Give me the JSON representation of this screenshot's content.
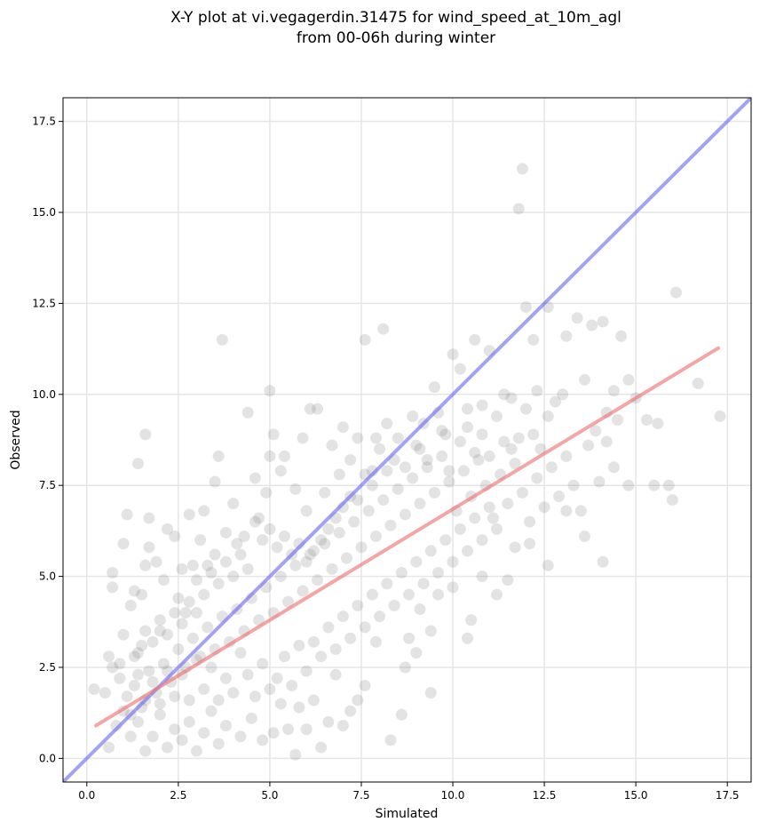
{
  "chart_data": {
    "type": "scatter",
    "title": "X-Y plot at vi.vegagerdin.31475 for wind_speed_at_10m_agl",
    "subtitle": "from 00-06h during winter",
    "xlabel": "Simulated",
    "ylabel": "Observed",
    "xlim": [
      -0.65,
      18.15
    ],
    "ylim": [
      -0.65,
      18.15
    ],
    "xticks": [
      0.0,
      2.5,
      5.0,
      7.5,
      10.0,
      12.5,
      15.0,
      17.5
    ],
    "yticks": [
      0.0,
      2.5,
      5.0,
      7.5,
      10.0,
      12.5,
      15.0,
      17.5
    ],
    "xtick_labels": [
      "0.0",
      "2.5",
      "5.0",
      "7.5",
      "10.0",
      "12.5",
      "15.0",
      "17.5"
    ],
    "ytick_labels": [
      "0.0",
      "2.5",
      "5.0",
      "7.5",
      "10.0",
      "12.5",
      "15.0",
      "17.5"
    ],
    "grid": true,
    "point_color": "#808080",
    "identity_line": {
      "x": [
        -0.65,
        18.15
      ],
      "y": [
        -0.65,
        18.15
      ],
      "color": "#6666ee"
    },
    "regression_line": {
      "x": [
        0.25,
        17.25
      ],
      "y": [
        0.9,
        11.27
      ],
      "color": "#ee7777"
    },
    "points": [
      [
        0.2,
        1.9
      ],
      [
        0.5,
        1.8
      ],
      [
        0.6,
        2.8
      ],
      [
        0.7,
        5.1
      ],
      [
        0.7,
        4.7
      ],
      [
        0.7,
        2.5
      ],
      [
        0.9,
        2.6
      ],
      [
        1.0,
        3.4
      ],
      [
        1.1,
        6.7
      ],
      [
        1.0,
        5.9
      ],
      [
        1.2,
        4.2
      ],
      [
        1.3,
        4.6
      ],
      [
        1.4,
        8.1
      ],
      [
        1.5,
        4.5
      ],
      [
        1.6,
        5.3
      ],
      [
        1.6,
        8.9
      ],
      [
        1.7,
        6.6
      ],
      [
        1.7,
        5.8
      ],
      [
        1.9,
        5.4
      ],
      [
        2.0,
        3.5
      ],
      [
        1.3,
        2.8
      ],
      [
        1.5,
        3.1
      ],
      [
        2.1,
        4.9
      ],
      [
        2.2,
        6.3
      ],
      [
        2.4,
        6.1
      ],
      [
        2.5,
        4.4
      ],
      [
        2.6,
        5.2
      ],
      [
        2.7,
        4.0
      ],
      [
        2.8,
        6.7
      ],
      [
        2.9,
        5.3
      ],
      [
        3.0,
        4.9
      ],
      [
        3.1,
        6.0
      ],
      [
        3.2,
        6.8
      ],
      [
        3.3,
        5.3
      ],
      [
        3.5,
        5.6
      ],
      [
        3.6,
        8.3
      ],
      [
        3.5,
        7.6
      ],
      [
        3.7,
        11.5
      ],
      [
        3.8,
        6.2
      ],
      [
        4.0,
        7.0
      ],
      [
        4.1,
        5.9
      ],
      [
        4.3,
        6.1
      ],
      [
        4.4,
        9.5
      ],
      [
        4.6,
        7.7
      ],
      [
        4.7,
        6.6
      ],
      [
        4.9,
        7.3
      ],
      [
        5.0,
        8.3
      ],
      [
        5.0,
        10.1
      ],
      [
        5.1,
        8.9
      ],
      [
        5.3,
        7.9
      ],
      [
        5.4,
        8.3
      ],
      [
        5.7,
        7.4
      ],
      [
        5.9,
        8.8
      ],
      [
        6.0,
        6.8
      ],
      [
        6.1,
        9.6
      ],
      [
        6.3,
        9.6
      ],
      [
        6.5,
        7.3
      ],
      [
        6.7,
        8.6
      ],
      [
        6.9,
        7.8
      ],
      [
        7.0,
        9.1
      ],
      [
        7.2,
        8.2
      ],
      [
        7.4,
        8.8
      ],
      [
        7.6,
        11.5
      ],
      [
        7.8,
        7.9
      ],
      [
        7.9,
        8.8
      ],
      [
        8.1,
        11.8
      ],
      [
        8.2,
        9.2
      ],
      [
        8.5,
        8.8
      ],
      [
        8.7,
        8.0
      ],
      [
        8.9,
        9.4
      ],
      [
        9.1,
        8.5
      ],
      [
        9.3,
        8.2
      ],
      [
        9.5,
        10.2
      ],
      [
        9.7,
        9.0
      ],
      [
        9.9,
        7.9
      ],
      [
        10.0,
        11.1
      ],
      [
        10.2,
        10.7
      ],
      [
        10.4,
        9.6
      ],
      [
        10.6,
        11.5
      ],
      [
        10.8,
        8.9
      ],
      [
        11.0,
        11.2
      ],
      [
        11.2,
        9.4
      ],
      [
        11.4,
        8.7
      ],
      [
        11.6,
        9.9
      ],
      [
        11.8,
        15.1
      ],
      [
        11.9,
        16.2
      ],
      [
        12.0,
        12.4
      ],
      [
        12.2,
        11.5
      ],
      [
        12.3,
        10.1
      ],
      [
        12.6,
        12.4
      ],
      [
        12.8,
        9.8
      ],
      [
        13.0,
        10.0
      ],
      [
        13.1,
        11.6
      ],
      [
        13.4,
        12.1
      ],
      [
        13.6,
        10.4
      ],
      [
        13.8,
        11.9
      ],
      [
        14.1,
        12.0
      ],
      [
        14.2,
        9.5
      ],
      [
        14.4,
        10.1
      ],
      [
        14.6,
        11.6
      ],
      [
        14.8,
        10.4
      ],
      [
        15.0,
        9.9
      ],
      [
        15.3,
        9.3
      ],
      [
        15.6,
        9.2
      ],
      [
        15.9,
        7.5
      ],
      [
        16.1,
        12.8
      ],
      [
        16.7,
        10.3
      ],
      [
        17.3,
        9.4
      ],
      [
        16.0,
        7.1
      ],
      [
        15.5,
        7.5
      ],
      [
        14.8,
        7.5
      ],
      [
        14.4,
        8.0
      ],
      [
        14.0,
        7.6
      ],
      [
        14.1,
        5.4
      ],
      [
        13.6,
        6.1
      ],
      [
        13.1,
        6.8
      ],
      [
        12.6,
        5.3
      ],
      [
        12.1,
        5.9
      ],
      [
        11.7,
        5.8
      ],
      [
        11.5,
        4.9
      ],
      [
        11.2,
        4.5
      ],
      [
        10.8,
        5.0
      ],
      [
        10.5,
        3.8
      ],
      [
        10.4,
        3.3
      ],
      [
        10.0,
        4.7
      ],
      [
        9.6,
        4.5
      ],
      [
        9.4,
        3.5
      ],
      [
        9.1,
        4.1
      ],
      [
        9.0,
        2.9
      ],
      [
        8.8,
        3.3
      ],
      [
        8.7,
        2.5
      ],
      [
        8.6,
        1.2
      ],
      [
        8.3,
        0.5
      ],
      [
        9.4,
        1.8
      ],
      [
        7.9,
        3.2
      ],
      [
        7.6,
        2.0
      ],
      [
        7.4,
        1.6
      ],
      [
        7.2,
        1.3
      ],
      [
        7.0,
        0.9
      ],
      [
        6.8,
        2.3
      ],
      [
        6.6,
        1.0
      ],
      [
        6.4,
        0.3
      ],
      [
        6.2,
        1.6
      ],
      [
        6.0,
        0.8
      ],
      [
        5.8,
        1.4
      ],
      [
        5.7,
        0.1
      ],
      [
        5.5,
        0.8
      ],
      [
        5.3,
        1.5
      ],
      [
        5.1,
        0.7
      ],
      [
        4.8,
        0.5
      ],
      [
        4.5,
        1.1
      ],
      [
        4.2,
        0.6
      ],
      [
        4.0,
        1.8
      ],
      [
        3.8,
        0.9
      ],
      [
        3.6,
        0.4
      ],
      [
        3.4,
        1.3
      ],
      [
        3.2,
        0.7
      ],
      [
        3.0,
        0.2
      ],
      [
        2.8,
        1.0
      ],
      [
        2.6,
        0.5
      ],
      [
        2.4,
        0.8
      ],
      [
        2.2,
        0.3
      ],
      [
        2.0,
        1.2
      ],
      [
        1.8,
        0.6
      ],
      [
        1.6,
        0.2
      ],
      [
        1.4,
        1.0
      ],
      [
        1.2,
        0.6
      ],
      [
        1.0,
        1.3
      ],
      [
        0.8,
        0.9
      ],
      [
        0.6,
        0.3
      ],
      [
        0.9,
        2.2
      ],
      [
        1.1,
        1.7
      ],
      [
        1.3,
        2.0
      ],
      [
        1.5,
        1.4
      ],
      [
        1.7,
        2.4
      ],
      [
        1.9,
        1.8
      ],
      [
        2.1,
        2.6
      ],
      [
        2.3,
        2.1
      ],
      [
        2.5,
        3.0
      ],
      [
        2.7,
        2.5
      ],
      [
        2.9,
        3.3
      ],
      [
        3.1,
        2.8
      ],
      [
        3.3,
        3.6
      ],
      [
        3.5,
        3.0
      ],
      [
        3.7,
        3.9
      ],
      [
        3.9,
        3.2
      ],
      [
        4.1,
        4.1
      ],
      [
        4.3,
        3.5
      ],
      [
        4.5,
        4.4
      ],
      [
        4.7,
        3.8
      ],
      [
        4.9,
        4.7
      ],
      [
        5.1,
        4.0
      ],
      [
        5.3,
        5.0
      ],
      [
        5.5,
        4.3
      ],
      [
        5.7,
        5.3
      ],
      [
        5.9,
        4.6
      ],
      [
        6.1,
        5.6
      ],
      [
        6.3,
        4.9
      ],
      [
        6.5,
        5.9
      ],
      [
        6.7,
        5.2
      ],
      [
        6.9,
        6.2
      ],
      [
        7.1,
        5.5
      ],
      [
        7.3,
        6.5
      ],
      [
        7.5,
        5.8
      ],
      [
        7.7,
        6.8
      ],
      [
        7.9,
        6.1
      ],
      [
        8.1,
        7.1
      ],
      [
        8.3,
        6.4
      ],
      [
        8.5,
        7.4
      ],
      [
        8.7,
        6.7
      ],
      [
        8.9,
        7.7
      ],
      [
        9.1,
        7.0
      ],
      [
        9.3,
        8.0
      ],
      [
        9.5,
        7.3
      ],
      [
        9.7,
        8.3
      ],
      [
        9.9,
        7.6
      ],
      [
        10.1,
        6.8
      ],
      [
        10.3,
        7.9
      ],
      [
        10.5,
        7.2
      ],
      [
        10.7,
        8.2
      ],
      [
        10.9,
        7.5
      ],
      [
        11.1,
        6.6
      ],
      [
        11.3,
        7.8
      ],
      [
        11.5,
        7.0
      ],
      [
        11.7,
        8.1
      ],
      [
        11.9,
        7.3
      ],
      [
        12.1,
        6.5
      ],
      [
        12.3,
        7.7
      ],
      [
        12.5,
        6.9
      ],
      [
        12.7,
        8.0
      ],
      [
        12.9,
        7.2
      ],
      [
        13.1,
        8.3
      ],
      [
        13.3,
        7.5
      ],
      [
        13.5,
        6.8
      ],
      [
        13.7,
        8.6
      ],
      [
        13.9,
        9.0
      ],
      [
        14.2,
        8.7
      ],
      [
        14.5,
        9.3
      ],
      [
        12.4,
        8.5
      ],
      [
        11.8,
        8.8
      ],
      [
        6.2,
        3.2
      ],
      [
        6.4,
        2.8
      ],
      [
        6.6,
        3.6
      ],
      [
        6.8,
        3.0
      ],
      [
        7.0,
        3.9
      ],
      [
        7.2,
        3.3
      ],
      [
        7.4,
        4.2
      ],
      [
        7.6,
        3.6
      ],
      [
        7.8,
        4.5
      ],
      [
        8.0,
        3.9
      ],
      [
        8.2,
        4.8
      ],
      [
        8.4,
        4.2
      ],
      [
        8.6,
        5.1
      ],
      [
        8.8,
        4.5
      ],
      [
        9.0,
        5.4
      ],
      [
        9.2,
        4.8
      ],
      [
        9.4,
        5.7
      ],
      [
        9.6,
        5.1
      ],
      [
        9.8,
        6.0
      ],
      [
        10.0,
        5.4
      ],
      [
        10.2,
        6.3
      ],
      [
        10.4,
        5.7
      ],
      [
        10.6,
        6.6
      ],
      [
        10.8,
        6.0
      ],
      [
        11.0,
        6.9
      ],
      [
        11.2,
        6.3
      ],
      [
        5.2,
        2.2
      ],
      [
        5.4,
        2.8
      ],
      [
        5.6,
        2.0
      ],
      [
        5.8,
        3.1
      ],
      [
        6.0,
        2.4
      ],
      [
        4.4,
        2.3
      ],
      [
        4.6,
        1.7
      ],
      [
        4.8,
        2.6
      ],
      [
        5.0,
        1.9
      ],
      [
        4.2,
        2.9
      ],
      [
        3.8,
        2.2
      ],
      [
        3.6,
        1.6
      ],
      [
        3.4,
        2.5
      ],
      [
        3.2,
        1.9
      ],
      [
        3.0,
        2.7
      ],
      [
        2.8,
        1.6
      ],
      [
        2.6,
        2.3
      ],
      [
        2.4,
        1.7
      ],
      [
        2.2,
        2.4
      ],
      [
        2.0,
        1.5
      ],
      [
        1.8,
        2.1
      ],
      [
        1.6,
        1.6
      ],
      [
        1.4,
        2.3
      ],
      [
        1.2,
        1.2
      ],
      [
        7.2,
        7.2
      ],
      [
        7.0,
        6.9
      ],
      [
        6.8,
        6.6
      ],
      [
        6.6,
        6.3
      ],
      [
        6.4,
        6.0
      ],
      [
        6.2,
        5.7
      ],
      [
        6.0,
        5.4
      ],
      [
        5.8,
        5.9
      ],
      [
        5.6,
        5.6
      ],
      [
        5.4,
        6.1
      ],
      [
        5.2,
        5.8
      ],
      [
        5.0,
        6.3
      ],
      [
        4.8,
        6.0
      ],
      [
        4.6,
        6.5
      ],
      [
        4.4,
        5.2
      ],
      [
        4.2,
        5.6
      ],
      [
        4.0,
        5.0
      ],
      [
        3.8,
        5.4
      ],
      [
        3.6,
        4.8
      ],
      [
        3.4,
        5.1
      ],
      [
        3.2,
        4.5
      ],
      [
        3.0,
        4.0
      ],
      [
        2.8,
        4.3
      ],
      [
        2.6,
        3.7
      ],
      [
        2.4,
        4.0
      ],
      [
        2.2,
        3.4
      ],
      [
        2.0,
        3.8
      ],
      [
        1.8,
        3.2
      ],
      [
        1.6,
        3.5
      ],
      [
        1.4,
        2.9
      ],
      [
        8.4,
        8.2
      ],
      [
        8.2,
        7.9
      ],
      [
        8.0,
        8.5
      ],
      [
        7.8,
        7.5
      ],
      [
        7.6,
        7.8
      ],
      [
        7.4,
        7.1
      ],
      [
        9.0,
        8.6
      ],
      [
        9.2,
        9.2
      ],
      [
        9.6,
        9.5
      ],
      [
        9.8,
        8.9
      ],
      [
        10.2,
        8.7
      ],
      [
        10.4,
        9.1
      ],
      [
        10.6,
        8.4
      ],
      [
        10.8,
        9.7
      ],
      [
        11.0,
        8.3
      ],
      [
        11.4,
        10.0
      ],
      [
        11.6,
        8.5
      ],
      [
        12.0,
        9.6
      ],
      [
        12.2,
        8.9
      ],
      [
        12.6,
        9.4
      ]
    ]
  }
}
